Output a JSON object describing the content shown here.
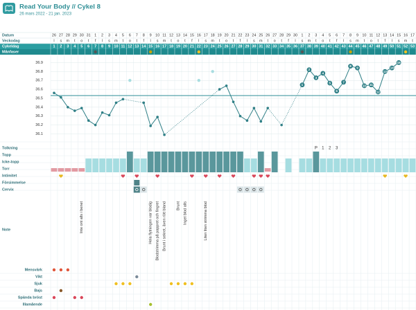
{
  "header": {
    "title": "Read Your Body // Cykel 8",
    "subtitle": "26 mars 2022 - 21 jan. 2023"
  },
  "labels": {
    "datum": "Datum",
    "veckodag": "Veckodag",
    "cykeldag": "Cykeldag",
    "manfaser": "Månfaser",
    "tolkning": "Tolkning",
    "topp": "Topp",
    "icke_topp": "Icke-topp",
    "torr": "Torr",
    "intimitet": "Intimitet",
    "forsimmelse": "Försimmelse",
    "cervix": "Cervix",
    "note": "Note"
  },
  "grid": {
    "dates": [
      26,
      27,
      28,
      29,
      30,
      31,
      1,
      2,
      3,
      4,
      5,
      6,
      7,
      8,
      9,
      10,
      11,
      12,
      13,
      14,
      15,
      16,
      17,
      18,
      19,
      20,
      21,
      22,
      23,
      24,
      25,
      26,
      27,
      28,
      29,
      30,
      1,
      2,
      3,
      4,
      5,
      6,
      7,
      8,
      9,
      10,
      11,
      12,
      13,
      14,
      15,
      16,
      17
    ],
    "weekdays": [
      "l",
      "s",
      "m",
      "t",
      "o",
      "t",
      "f",
      "l",
      "s",
      "m",
      "t",
      "o",
      "t",
      "f",
      "l",
      "s",
      "m",
      "t",
      "o",
      "t",
      "f",
      "l",
      "s",
      "m",
      "t",
      "o",
      "t",
      "f",
      "l",
      "s",
      "m",
      "t",
      "o",
      "t",
      "f",
      "l",
      "s",
      "m",
      "t",
      "o",
      "t",
      "f",
      "l",
      "s",
      "m",
      "t",
      "o",
      "t",
      "f",
      "l",
      "s",
      "m",
      "t"
    ],
    "tolkning": [
      null,
      null,
      null,
      null,
      null,
      null,
      null,
      null,
      null,
      null,
      null,
      null,
      null,
      null,
      null,
      null,
      null,
      null,
      null,
      null,
      null,
      null,
      null,
      null,
      null,
      null,
      null,
      null,
      null,
      null,
      null,
      null,
      null,
      null,
      null,
      null,
      null,
      null,
      "P",
      1,
      2,
      3,
      null,
      null,
      null,
      null,
      null,
      null,
      null,
      null,
      null,
      null,
      null
    ],
    "mucus": [
      "torr",
      "torr",
      "torr",
      "torr",
      "torr",
      "icke",
      "icke",
      "icke",
      "icke",
      "icke",
      "icke",
      "topp",
      "icke",
      "icke",
      "topp",
      "topp",
      "topp",
      "topp",
      "topp",
      "topp",
      "topp",
      "topp",
      "topp",
      "topp",
      "topp",
      "topp",
      "topp",
      "topp",
      "icke",
      "icke",
      "topp",
      "torr",
      "topp",
      null,
      "icke",
      null,
      "icke",
      "icke",
      "topp",
      "icke",
      "icke",
      "icke",
      "icke",
      "icke",
      "icke",
      "icke",
      "icke",
      "icke",
      "icke",
      "icke",
      "icke",
      "icke",
      "icke"
    ],
    "intimacy": [
      {
        "day": 2,
        "color": "#e8b820"
      },
      {
        "day": 11,
        "color": "#d9475a"
      },
      {
        "day": 13,
        "color": "#d9475a"
      },
      {
        "day": 16,
        "color": "#d9475a"
      },
      {
        "day": 21,
        "color": "#d9475a"
      },
      {
        "day": 23,
        "color": "#d9475a"
      },
      {
        "day": 25,
        "color": "#d9475a"
      },
      {
        "day": 27,
        "color": "#d9475a"
      },
      {
        "day": 30,
        "color": "#d9475a"
      },
      {
        "day": 31,
        "color": "#d9475a"
      },
      {
        "day": 32,
        "color": "#d9475a"
      },
      {
        "day": 49,
        "color": "#e8b820"
      },
      {
        "day": 52,
        "color": "#e8b820"
      }
    ],
    "forsimmelse_days": [
      13
    ],
    "cervix_days": [
      13,
      14,
      28,
      29,
      30,
      31
    ],
    "moon": [
      {
        "day": 7,
        "color": "#555555"
      },
      {
        "day": 15,
        "color": "#c9a600"
      },
      {
        "day": 22,
        "color": "#f0c020"
      },
      {
        "day": 37,
        "color": "#555555"
      },
      {
        "day": 44,
        "color": "#c9a600"
      },
      {
        "day": 52,
        "color": "#f0c020"
      }
    ],
    "notes": [
      {
        "day": 5,
        "text": "Inte ont alls i benet"
      },
      {
        "day": 15,
        "text": "Hela flytningen var blodig"
      },
      {
        "day": 16,
        "text": "Blodstrimma på pappret och fingret"
      },
      {
        "day": 17,
        "text": "Brunt i sekret, även rött bland"
      },
      {
        "day": 19,
        "text": "Brunt"
      },
      {
        "day": 20,
        "text": "Inget blod alls"
      },
      {
        "day": 23,
        "text": "Liten liten strimma blod"
      }
    ],
    "symptoms": [
      {
        "label": "Mensvärk",
        "days": [
          1,
          2,
          3
        ],
        "color": "#e0553a"
      },
      {
        "label": "Vikt",
        "days": [
          13
        ],
        "color": "#7a8a99"
      },
      {
        "label": "Sjuk",
        "days": [
          10,
          11,
          12,
          18,
          19,
          20,
          21
        ],
        "color": "#f0c020"
      },
      {
        "label": "Bajs",
        "days": [
          2
        ],
        "color": "#8a5a2b"
      },
      {
        "label": "Spända bröst",
        "days": [
          1,
          4,
          5
        ],
        "color": "#d9475a"
      },
      {
        "label": "Illamående",
        "days": [
          15
        ],
        "color": "#a6c030"
      }
    ]
  },
  "chart_data": {
    "type": "line",
    "categories": [
      1,
      2,
      3,
      4,
      5,
      6,
      7,
      8,
      9,
      10,
      11,
      12,
      13,
      14,
      15,
      16,
      17,
      18,
      19,
      20,
      21,
      22,
      23,
      24,
      25,
      26,
      27,
      28,
      29,
      30,
      31,
      32,
      33,
      34,
      35,
      36,
      37,
      38,
      39,
      40,
      41,
      42,
      43,
      44,
      45,
      46,
      47,
      48,
      49,
      50,
      51,
      52,
      53
    ],
    "values": [
      36.56,
      36.51,
      36.4,
      36.36,
      36.39,
      36.25,
      36.2,
      36.34,
      36.31,
      36.45,
      36.49,
      null,
      null,
      36.45,
      36.19,
      36.29,
      36.09,
      null,
      null,
      null,
      null,
      null,
      null,
      null,
      36.6,
      36.64,
      36.46,
      36.3,
      36.25,
      36.39,
      36.24,
      36.39,
      null,
      36.2,
      null,
      null,
      36.65,
      36.82,
      36.73,
      36.78,
      36.67,
      36.58,
      36.68,
      36.86,
      36.84,
      36.64,
      36.65,
      36.57,
      36.8,
      36.84,
      36.9,
      null,
      null
    ],
    "excluded_values": [
      null,
      null,
      null,
      null,
      null,
      null,
      null,
      null,
      null,
      null,
      null,
      36.7,
      null,
      null,
      null,
      null,
      null,
      null,
      null,
      null,
      null,
      36.7,
      null,
      36.8,
      null,
      null,
      null,
      null,
      null,
      null,
      null,
      null,
      null,
      null,
      null,
      null,
      null,
      null,
      null,
      null,
      null,
      null,
      null,
      null,
      null,
      null,
      null,
      null,
      null,
      null,
      null,
      null,
      null
    ],
    "high_labels": [
      null,
      null,
      null,
      null,
      null,
      null,
      null,
      null,
      null,
      null,
      null,
      null,
      null,
      null,
      null,
      null,
      null,
      null,
      null,
      null,
      null,
      null,
      null,
      null,
      null,
      null,
      null,
      null,
      null,
      null,
      null,
      null,
      null,
      null,
      null,
      null,
      1,
      2,
      3,
      4,
      5,
      6,
      7,
      8,
      9,
      10,
      11,
      12,
      13,
      14,
      15,
      null,
      null
    ],
    "color": "#2f7f86",
    "excluded_color": "#a8dde0",
    "coverline": 36.53,
    "coverline_color": "#2f8f96",
    "ylim": [
      36.05,
      36.95
    ],
    "yticks": [
      36.1,
      36.2,
      36.3,
      36.4,
      36.5,
      36.6,
      36.7,
      36.8,
      36.9
    ],
    "grid": true
  }
}
